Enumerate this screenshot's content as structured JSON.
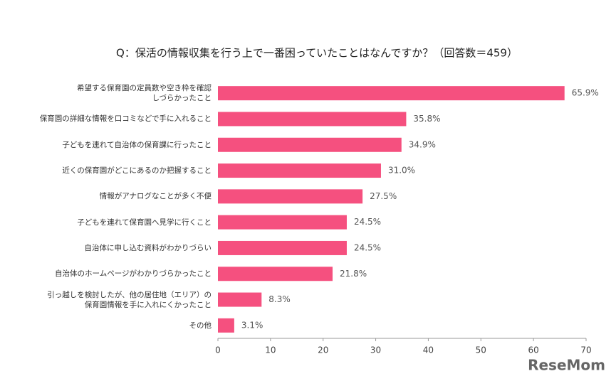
{
  "chart_data": {
    "type": "barh",
    "title": "Q：保活の情報収集を行う上で一番困っていたことはなんですか？（回答数＝459）",
    "categories": [
      "希望する保育園の定員数や空き枠を確認\nしづらかったこと",
      "保育園の詳細な情報を口コミなどで手に入れること",
      "子どもを連れて自治体の保育課に行ったこと",
      "近くの保育園がどこにあるのか把握すること",
      "情報がアナログなことが多く不便",
      "子どもを連れて保育園へ見学に行くこと",
      "自治体に申し込む資料がわかりづらい",
      "自治体のホームページがわかりづらかったこと",
      "引っ越しを検討したが、他の居住地（エリア）の\n保育園情報を手に入れにくかったこと",
      "その他"
    ],
    "values": [
      65.9,
      35.8,
      34.9,
      31.0,
      27.5,
      24.5,
      24.5,
      21.8,
      8.3,
      3.1
    ],
    "value_labels": [
      "65.9%",
      "35.8%",
      "34.9%",
      "31.0%",
      "27.5%",
      "24.5%",
      "24.5%",
      "21.8%",
      "8.3%",
      "3.1%"
    ],
    "color": "#f5507f",
    "xlim": [
      0,
      70
    ],
    "xticks": [
      0,
      10,
      20,
      30,
      40,
      50,
      60,
      70
    ],
    "grid": false,
    "watermark": "ReseMom"
  }
}
